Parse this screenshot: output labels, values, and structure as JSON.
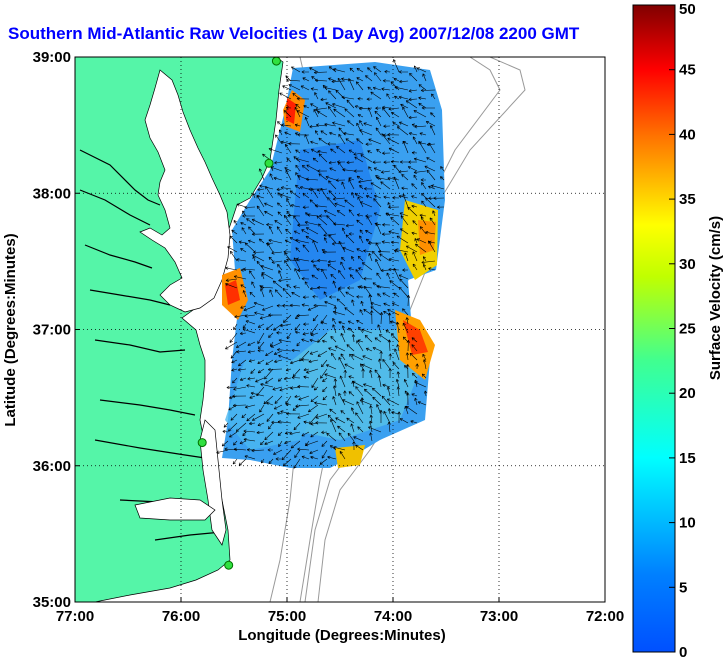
{
  "title": "Southern Mid-Atlantic Raw Velocities (1 Day Avg) 2007/12/08 2200 GMT",
  "map": {
    "xlabel": "Longitude (Degrees:Minutes)",
    "ylabel": "Latitude (Degrees:Minutes)",
    "xlim": [
      -77,
      -72
    ],
    "ylim": [
      35,
      39
    ],
    "xticks": [
      {
        "value": -77,
        "label": "77:00"
      },
      {
        "value": -76,
        "label": "76:00"
      },
      {
        "value": -75,
        "label": "75:00"
      },
      {
        "value": -74,
        "label": "74:00"
      },
      {
        "value": -73,
        "label": "73:00"
      },
      {
        "value": -72,
        "label": "72:00"
      }
    ],
    "yticks": [
      {
        "value": 35,
        "label": "35:00"
      },
      {
        "value": 36,
        "label": "36:00"
      },
      {
        "value": 37,
        "label": "37:00"
      },
      {
        "value": 38,
        "label": "38:00"
      },
      {
        "value": 39,
        "label": "39:00"
      }
    ],
    "grid": "dotted",
    "land_color": "#55f5a8",
    "water_color": "#ffffff",
    "isobath_color": "#999999",
    "arrow_color": "#000000",
    "radar_sites": [
      {
        "lon": -75.1,
        "lat": 38.97
      },
      {
        "lon": -75.17,
        "lat": 38.22
      },
      {
        "lon": -75.8,
        "lat": 36.17
      },
      {
        "lon": -75.55,
        "lat": 35.27
      }
    ]
  },
  "colorbar": {
    "label": "Surface Velocity (cm/s)",
    "min": 0,
    "max": 50,
    "ticks": [
      {
        "value": 0,
        "label": "0"
      },
      {
        "value": 5,
        "label": "5"
      },
      {
        "value": 10,
        "label": "10"
      },
      {
        "value": 15,
        "label": "15"
      },
      {
        "value": 20,
        "label": "20"
      },
      {
        "value": 25,
        "label": "25"
      },
      {
        "value": 30,
        "label": "30"
      },
      {
        "value": 35,
        "label": "35"
      },
      {
        "value": 40,
        "label": "40"
      },
      {
        "value": 45,
        "label": "45"
      },
      {
        "value": 50,
        "label": "50"
      }
    ],
    "colormap": "jet"
  }
}
